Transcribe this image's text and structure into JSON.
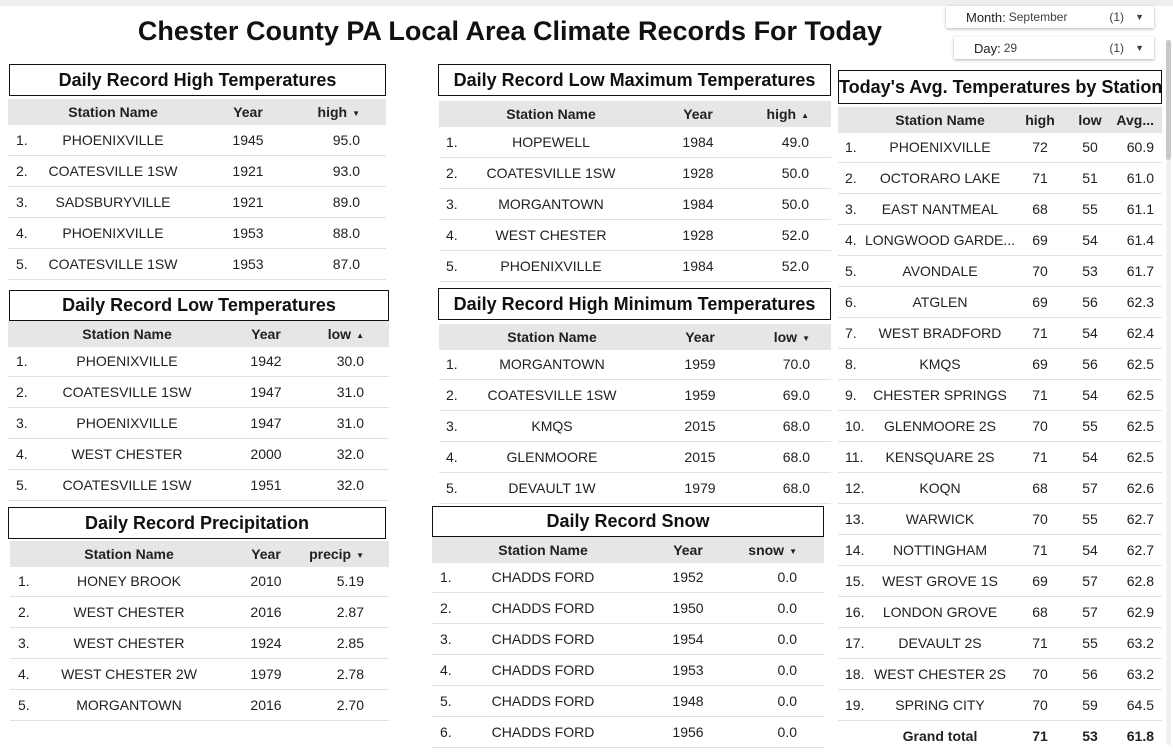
{
  "title": "Chester County PA Local Area Climate Records For Today",
  "filters": [
    {
      "id": "month",
      "label": "Month:",
      "value": "September",
      "count": "(1)"
    },
    {
      "id": "day",
      "label": "Day:",
      "value": "29",
      "count": "(1)"
    }
  ],
  "panels": [
    {
      "id": "daily-record-high",
      "title": "Daily Record High Temperatures",
      "headers": [
        "Station Name",
        "Year",
        "high"
      ],
      "sort_dir": "▼",
      "rows": [
        [
          "1.",
          "PHOENIXVILLE",
          "1945",
          "95.0"
        ],
        [
          "2.",
          "COATESVILLE 1SW",
          "1921",
          "93.0"
        ],
        [
          "3.",
          "SADSBURYVILLE",
          "1921",
          "89.0"
        ],
        [
          "4.",
          "PHOENIXVILLE",
          "1953",
          "88.0"
        ],
        [
          "5.",
          "COATESVILLE 1SW",
          "1953",
          "87.0"
        ]
      ]
    },
    {
      "id": "daily-record-low",
      "title": "Daily Record Low Temperatures",
      "headers": [
        "Station Name",
        "Year",
        "low"
      ],
      "sort_dir": "▲",
      "rows": [
        [
          "1.",
          "PHOENIXVILLE",
          "1942",
          "30.0"
        ],
        [
          "2.",
          "COATESVILLE 1SW",
          "1947",
          "31.0"
        ],
        [
          "3.",
          "PHOENIXVILLE",
          "1947",
          "31.0"
        ],
        [
          "4.",
          "WEST CHESTER",
          "2000",
          "32.0"
        ],
        [
          "5.",
          "COATESVILLE 1SW",
          "1951",
          "32.0"
        ]
      ]
    },
    {
      "id": "daily-record-precip",
      "title": "Daily Record Precipitation",
      "headers": [
        "Station Name",
        "Year",
        "precip"
      ],
      "sort_dir": "▼",
      "rows": [
        [
          "1.",
          "HONEY BROOK",
          "2010",
          "5.19"
        ],
        [
          "2.",
          "WEST CHESTER",
          "2016",
          "2.87"
        ],
        [
          "3.",
          "WEST CHESTER",
          "1924",
          "2.85"
        ],
        [
          "4.",
          "WEST CHESTER 2W",
          "1979",
          "2.78"
        ],
        [
          "5.",
          "MORGANTOWN",
          "2016",
          "2.70"
        ]
      ]
    },
    {
      "id": "daily-record-low-max",
      "title": "Daily Record Low Maximum Temperatures",
      "headers": [
        "Station Name",
        "Year",
        "high"
      ],
      "sort_dir": "▲",
      "rows": [
        [
          "1.",
          "HOPEWELL",
          "1984",
          "49.0"
        ],
        [
          "2.",
          "COATESVILLE 1SW",
          "1928",
          "50.0"
        ],
        [
          "3.",
          "MORGANTOWN",
          "1984",
          "50.0"
        ],
        [
          "4.",
          "WEST CHESTER",
          "1928",
          "52.0"
        ],
        [
          "5.",
          "PHOENIXVILLE",
          "1984",
          "52.0"
        ]
      ]
    },
    {
      "id": "daily-record-high-min",
      "title": "Daily Record High Minimum Temperatures",
      "headers": [
        "Station Name",
        "Year",
        "low"
      ],
      "sort_dir": "▼",
      "rows": [
        [
          "1.",
          "MORGANTOWN",
          "1959",
          "70.0"
        ],
        [
          "2.",
          "COATESVILLE 1SW",
          "1959",
          "69.0"
        ],
        [
          "3.",
          "KMQS",
          "2015",
          "68.0"
        ],
        [
          "4.",
          "GLENMOORE",
          "2015",
          "68.0"
        ],
        [
          "5.",
          "DEVAULT 1W",
          "1979",
          "68.0"
        ]
      ]
    },
    {
      "id": "daily-record-snow",
      "title": "Daily Record Snow",
      "headers": [
        "Station Name",
        "Year",
        "snow"
      ],
      "sort_dir": "▼",
      "rows": [
        [
          "1.",
          "CHADDS FORD",
          "1952",
          "0.0"
        ],
        [
          "2.",
          "CHADDS FORD",
          "1950",
          "0.0"
        ],
        [
          "3.",
          "CHADDS FORD",
          "1954",
          "0.0"
        ],
        [
          "4.",
          "CHADDS FORD",
          "1953",
          "0.0"
        ],
        [
          "5.",
          "CHADDS FORD",
          "1948",
          "0.0"
        ],
        [
          "6.",
          "CHADDS FORD",
          "1956",
          "0.0"
        ]
      ]
    },
    {
      "id": "avg-temps-by-station",
      "title": "Today's Avg. Temperatures by Station",
      "headers": [
        "Station Name",
        "high",
        "low",
        "Avg..."
      ],
      "sort_dir": "",
      "rows": [
        [
          "1.",
          "PHOENIXVILLE",
          "72",
          "50",
          "60.9"
        ],
        [
          "2.",
          "OCTORARO LAKE",
          "71",
          "51",
          "61.0"
        ],
        [
          "3.",
          "EAST NANTMEAL",
          "68",
          "55",
          "61.1"
        ],
        [
          "4.",
          "LONGWOOD GARDE...",
          "69",
          "54",
          "61.4"
        ],
        [
          "5.",
          "AVONDALE",
          "70",
          "53",
          "61.7"
        ],
        [
          "6.",
          "ATGLEN",
          "69",
          "56",
          "62.3"
        ],
        [
          "7.",
          "WEST BRADFORD",
          "71",
          "54",
          "62.4"
        ],
        [
          "8.",
          "KMQS",
          "69",
          "56",
          "62.5"
        ],
        [
          "9.",
          "CHESTER SPRINGS",
          "71",
          "54",
          "62.5"
        ],
        [
          "10.",
          "GLENMOORE 2S",
          "70",
          "55",
          "62.5"
        ],
        [
          "11.",
          "KENSQUARE 2S",
          "71",
          "54",
          "62.5"
        ],
        [
          "12.",
          "KOQN",
          "68",
          "57",
          "62.6"
        ],
        [
          "13.",
          "WARWICK",
          "70",
          "55",
          "62.7"
        ],
        [
          "14.",
          "NOTTINGHAM",
          "71",
          "54",
          "62.7"
        ],
        [
          "15.",
          "WEST GROVE 1S",
          "69",
          "57",
          "62.8"
        ],
        [
          "16.",
          "LONDON GROVE",
          "68",
          "57",
          "62.9"
        ],
        [
          "17.",
          "DEVAULT 2S",
          "71",
          "55",
          "63.2"
        ],
        [
          "18.",
          "WEST CHESTER 2S",
          "70",
          "56",
          "63.2"
        ],
        [
          "19.",
          "SPRING CITY",
          "70",
          "59",
          "64.5"
        ]
      ],
      "total": [
        "",
        "Grand total",
        "71",
        "53",
        "61.8"
      ]
    }
  ]
}
